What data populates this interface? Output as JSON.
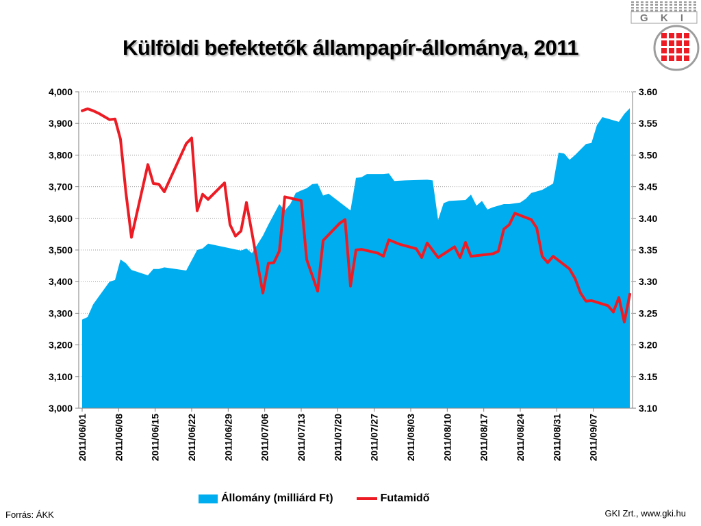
{
  "slide": {
    "title": "Külföldi befektetők állampapír-állománya, 2011",
    "source": "Forrás: ÁKK",
    "credit": "GKI Zrt., www.gki.hu",
    "logo_text": "G K I"
  },
  "colors": {
    "area": "#00aeef",
    "line": "#ed1c24",
    "grid": "#9a9a9a",
    "logo_red": "#ed1c24",
    "logo_gray": "#9d9d9d"
  },
  "chart_data": {
    "type": "area+line",
    "title": "Külföldi befektetők állampapír-állománya, 2011",
    "x_tick_labels": [
      "2011/06/01",
      "2011/06/08",
      "2011/06/15",
      "2011/06/22",
      "2011/06/29",
      "2011/07/06",
      "2011/07/13",
      "2011/07/20",
      "2011/07/27",
      "2011/08/03",
      "2011/08/10",
      "2011/08/17",
      "2011/08/24",
      "2011/08/31",
      "2011/09/07"
    ],
    "x_range": [
      0,
      100
    ],
    "y_left": {
      "min": 3000,
      "max": 4000,
      "ticks": [
        "3,000",
        "3,100",
        "3,200",
        "3,300",
        "3,400",
        "3,500",
        "3,600",
        "3,700",
        "3,800",
        "3,900",
        "4,000"
      ]
    },
    "y_right": {
      "min": 3.1,
      "max": 3.6,
      "ticks": [
        "3.10",
        "3.15",
        "3.20",
        "3.25",
        "3.30",
        "3.35",
        "3.40",
        "3.45",
        "3.50",
        "3.55",
        "3.60"
      ]
    },
    "grid": true,
    "legend_position": "bottom",
    "series": [
      {
        "name": "Állomány (milliárd Ft)",
        "type": "area",
        "axis": "left",
        "points": [
          [
            0,
            3280
          ],
          [
            1,
            3288
          ],
          [
            2,
            3328
          ],
          [
            3,
            3352
          ],
          [
            5,
            3400
          ],
          [
            6,
            3405
          ],
          [
            7,
            3470
          ],
          [
            8,
            3458
          ],
          [
            9,
            3437
          ],
          [
            12,
            3420
          ],
          [
            13,
            3440
          ],
          [
            14,
            3440
          ],
          [
            15,
            3445
          ],
          [
            19,
            3435
          ],
          [
            21,
            3500
          ],
          [
            22,
            3505
          ],
          [
            23,
            3520
          ],
          [
            29,
            3498
          ],
          [
            30,
            3505
          ],
          [
            31,
            3490
          ],
          [
            33,
            3545
          ],
          [
            34,
            3580
          ],
          [
            36,
            3645
          ],
          [
            37,
            3625
          ],
          [
            38,
            3645
          ],
          [
            39,
            3680
          ],
          [
            40,
            3688
          ],
          [
            41,
            3695
          ],
          [
            42,
            3708
          ],
          [
            43,
            3710
          ],
          [
            44,
            3672
          ],
          [
            45,
            3678
          ],
          [
            49,
            3625
          ],
          [
            50,
            3728
          ],
          [
            51,
            3730
          ],
          [
            52,
            3740
          ],
          [
            55,
            3740
          ],
          [
            56,
            3742
          ],
          [
            57,
            3718
          ],
          [
            59,
            3720
          ],
          [
            63,
            3722
          ],
          [
            64,
            3720
          ],
          [
            65,
            3595
          ],
          [
            66,
            3648
          ],
          [
            67,
            3655
          ],
          [
            70,
            3658
          ],
          [
            71,
            3675
          ],
          [
            72,
            3640
          ],
          [
            73,
            3655
          ],
          [
            74,
            3628
          ],
          [
            75,
            3635
          ],
          [
            77,
            3645
          ],
          [
            78,
            3645
          ],
          [
            80,
            3650
          ],
          [
            81,
            3662
          ],
          [
            82,
            3680
          ],
          [
            84,
            3690
          ],
          [
            86,
            3710
          ],
          [
            87,
            3808
          ],
          [
            88,
            3805
          ],
          [
            89,
            3785
          ],
          [
            90,
            3800
          ],
          [
            92,
            3835
          ],
          [
            93,
            3838
          ],
          [
            94,
            3895
          ],
          [
            95,
            3920
          ],
          [
            98,
            3905
          ],
          [
            99,
            3930
          ],
          [
            100,
            3948
          ]
        ]
      },
      {
        "name": "Futamidő",
        "type": "line",
        "axis": "right",
        "points": [
          [
            0,
            3.57
          ],
          [
            1,
            3.573
          ],
          [
            2,
            3.57
          ],
          [
            3,
            3.566
          ],
          [
            5,
            3.556
          ],
          [
            6,
            3.557
          ],
          [
            7,
            3.525
          ],
          [
            8,
            3.44
          ],
          [
            9,
            3.37
          ],
          [
            12,
            3.485
          ],
          [
            13,
            3.455
          ],
          [
            14,
            3.454
          ],
          [
            15,
            3.442
          ],
          [
            19,
            3.518
          ],
          [
            20,
            3.527
          ],
          [
            21,
            3.412
          ],
          [
            22,
            3.438
          ],
          [
            23,
            3.43
          ],
          [
            26,
            3.456
          ],
          [
            27,
            3.39
          ],
          [
            28,
            3.372
          ],
          [
            29,
            3.38
          ],
          [
            30,
            3.425
          ],
          [
            33,
            3.282
          ],
          [
            34,
            3.329
          ],
          [
            35,
            3.33
          ],
          [
            36,
            3.348
          ],
          [
            37,
            3.434
          ],
          [
            40,
            3.428
          ],
          [
            41,
            3.335
          ],
          [
            42,
            3.31
          ],
          [
            43,
            3.285
          ],
          [
            44,
            3.365
          ],
          [
            47,
            3.392
          ],
          [
            48,
            3.398
          ],
          [
            49,
            3.293
          ],
          [
            50,
            3.35
          ],
          [
            51,
            3.351
          ],
          [
            54,
            3.345
          ],
          [
            55,
            3.34
          ],
          [
            56,
            3.366
          ],
          [
            58,
            3.359
          ],
          [
            61,
            3.352
          ],
          [
            62,
            3.338
          ],
          [
            63,
            3.361
          ],
          [
            65,
            3.338
          ],
          [
            68,
            3.355
          ],
          [
            69,
            3.338
          ],
          [
            70,
            3.362
          ],
          [
            71,
            3.34
          ],
          [
            75,
            3.344
          ],
          [
            76,
            3.348
          ],
          [
            77,
            3.383
          ],
          [
            78,
            3.39
          ],
          [
            79,
            3.408
          ],
          [
            82,
            3.398
          ],
          [
            83,
            3.385
          ],
          [
            84,
            3.34
          ],
          [
            85,
            3.33
          ],
          [
            86,
            3.34
          ],
          [
            89,
            3.32
          ],
          [
            90,
            3.305
          ],
          [
            91,
            3.282
          ],
          [
            92,
            3.269
          ],
          [
            93,
            3.27
          ],
          [
            96,
            3.262
          ],
          [
            97,
            3.252
          ],
          [
            98,
            3.275
          ],
          [
            99,
            3.236
          ],
          [
            100,
            3.28
          ]
        ]
      }
    ]
  }
}
